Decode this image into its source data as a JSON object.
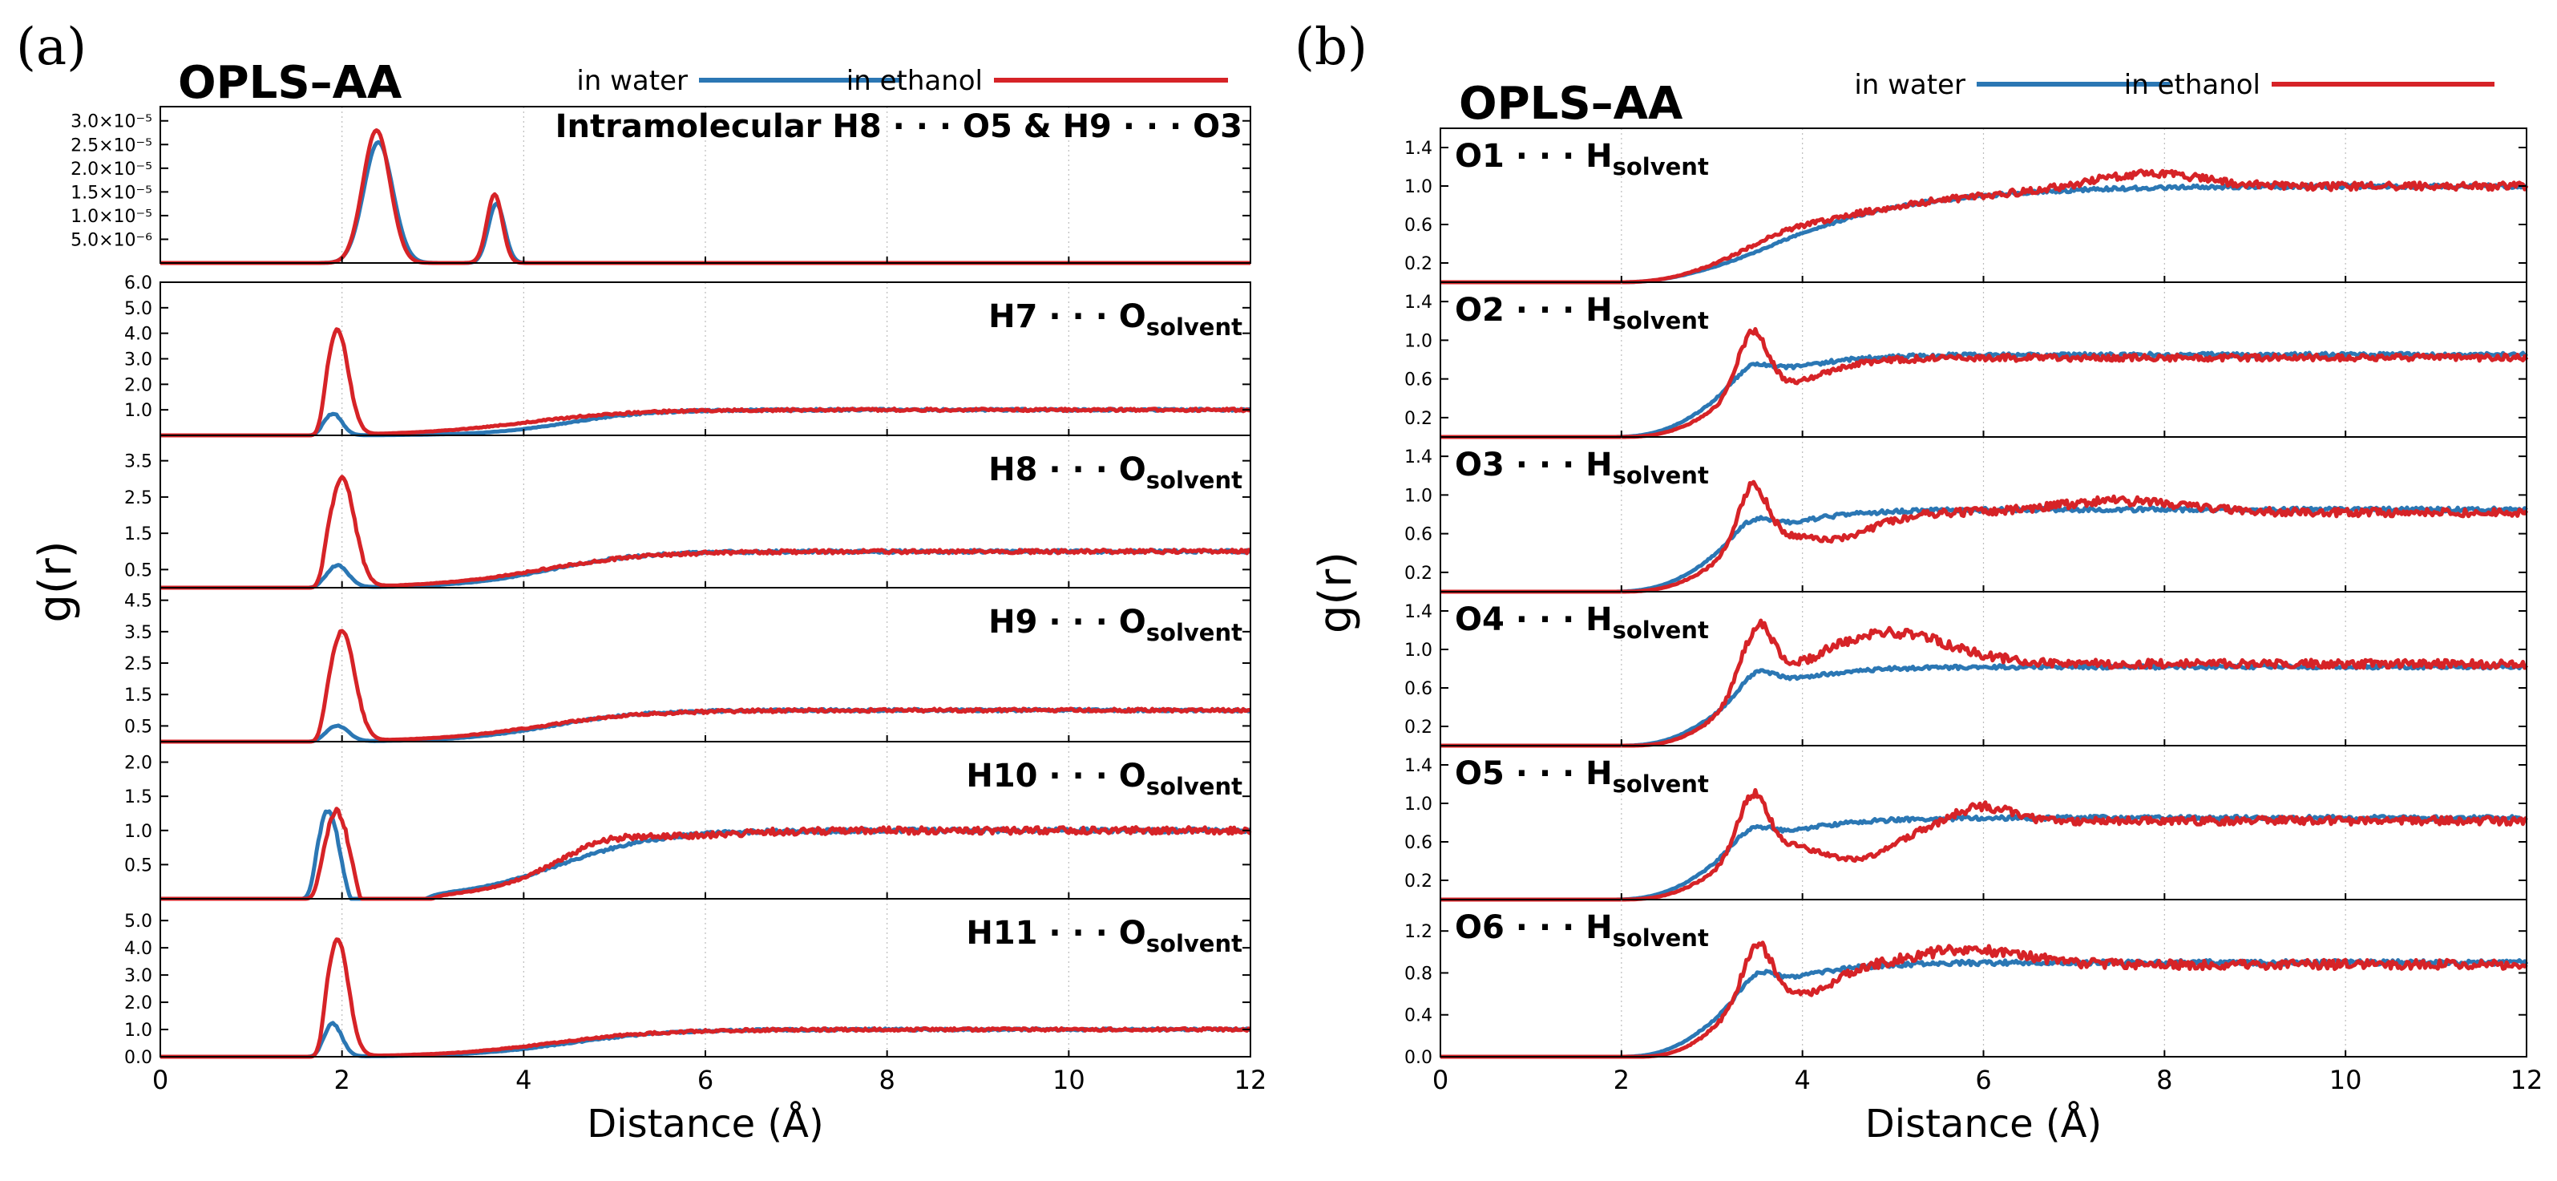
{
  "figure": {
    "colors": {
      "water": "#2b77b4",
      "ethanol": "#d62327"
    },
    "xlabel": "Distance (Å)",
    "ylabel": "g(r)",
    "xticks": [
      "0",
      "2",
      "4",
      "6",
      "8",
      "10",
      "12"
    ]
  },
  "chart_data": [
    {
      "panel_letter": "(a)",
      "model": "OPLS–AA",
      "legend": [
        "in water",
        "in ethanol"
      ],
      "type": "line",
      "xlim": [
        0,
        12
      ],
      "subplots": [
        {
          "label_main": "Intramolecular H8 · · · O5 &  H9 · · · O3",
          "label_sub": "",
          "label_pos": "right",
          "ylim": [
            0,
            3.3e-05
          ],
          "yticks": [
            5e-06,
            1e-05,
            1.5e-05,
            2e-05,
            2.5e-05,
            3e-05
          ],
          "ytick_labels": [
            "5.0×10⁻⁶",
            "1.0×10⁻⁵",
            "1.5×10⁻⁵",
            "2.0×10⁻⁵",
            "2.5×10⁻⁵",
            "3.0×10⁻⁵"
          ],
          "water": {
            "baseline": 0,
            "asym": null,
            "onset": null,
            "peaks": [
              [
                2.4,
                2.55e-05,
                0.16
              ],
              [
                3.7,
                1.25e-05,
                0.09
              ]
            ],
            "wells": [],
            "noise": 0
          },
          "ethanol": {
            "baseline": 0,
            "asym": null,
            "onset": null,
            "peaks": [
              [
                2.38,
                2.8e-05,
                0.15
              ],
              [
                3.68,
                1.45e-05,
                0.085
              ]
            ],
            "wells": [],
            "noise": 0
          }
        },
        {
          "label_main": "H7 · · · O",
          "label_sub": "solvent",
          "label_pos": "right",
          "ylim": [
            0,
            6.0
          ],
          "yticks": [
            1.0,
            2.0,
            3.0,
            4.0,
            5.0,
            6.0
          ],
          "ytick_labels": [
            "1.0",
            "2.0",
            "3.0",
            "4.0",
            "5.0",
            "6.0"
          ],
          "water": {
            "baseline": 0,
            "asym": [
              1.0,
              4.5,
              0.45
            ],
            "onset": [
              1.6,
              1.8
            ],
            "peaks": [
              [
                1.9,
                0.85,
                0.1
              ]
            ],
            "wells": [],
            "noise": 0.04
          },
          "ethanol": {
            "baseline": 0,
            "asym": [
              1.0,
              4.0,
              0.6
            ],
            "onset": [
              1.65,
              1.85
            ],
            "peaks": [
              [
                1.95,
                4.1,
                0.12
              ]
            ],
            "wells": [],
            "noise": 0.05
          }
        },
        {
          "label_main": "H8 · · · O",
          "label_sub": "solvent",
          "label_pos": "right",
          "ylim": [
            0,
            4.2
          ],
          "yticks": [
            0.5,
            1.5,
            2.5,
            3.5
          ],
          "ytick_labels": [
            "0.5",
            "1.5",
            "2.5",
            "3.5"
          ],
          "water": {
            "baseline": 0,
            "asym": [
              1.0,
              4.3,
              0.5
            ],
            "onset": [
              1.6,
              1.8
            ],
            "peaks": [
              [
                1.95,
                0.6,
                0.12
              ]
            ],
            "wells": [],
            "noise": 0.04
          },
          "ethanol": {
            "baseline": 0,
            "asym": [
              1.0,
              4.2,
              0.6
            ],
            "onset": [
              1.65,
              1.85
            ],
            "peaks": [
              [
                2.0,
                3.0,
                0.14
              ]
            ],
            "wells": [],
            "noise": 0.05
          }
        },
        {
          "label_main": "H9 · · · O",
          "label_sub": "solvent",
          "label_pos": "right",
          "ylim": [
            0,
            4.9
          ],
          "yticks": [
            0.5,
            1.5,
            2.5,
            3.5,
            4.5
          ],
          "ytick_labels": [
            "0.5",
            "1.5",
            "2.5",
            "3.5",
            "4.5"
          ],
          "water": {
            "baseline": 0,
            "asym": [
              1.0,
              4.3,
              0.5
            ],
            "onset": [
              1.6,
              1.8
            ],
            "peaks": [
              [
                1.95,
                0.5,
                0.12
              ]
            ],
            "wells": [],
            "noise": 0.04
          },
          "ethanol": {
            "baseline": 0,
            "asym": [
              1.0,
              4.2,
              0.6
            ],
            "onset": [
              1.65,
              1.85
            ],
            "peaks": [
              [
                2.0,
                3.5,
                0.14
              ]
            ],
            "wells": [],
            "noise": 0.05
          }
        },
        {
          "label_main": "H10 · · · O",
          "label_sub": "solvent",
          "label_pos": "right",
          "ylim": [
            0,
            2.3
          ],
          "yticks": [
            0.5,
            1.0,
            1.5,
            2.0
          ],
          "ytick_labels": [
            "0.5",
            "1.0",
            "1.5",
            "2.0"
          ],
          "water": {
            "baseline": 0,
            "asym": [
              1.0,
              4.4,
              0.55
            ],
            "onset": [
              1.55,
              1.75
            ],
            "peaks": [
              [
                1.85,
                1.3,
                0.12
              ]
            ],
            "wells": [
              [
                2.45,
                -0.65,
                0.22
              ]
            ],
            "noise": 0.03
          },
          "ethanol": {
            "baseline": 0,
            "asym": [
              1.0,
              4.6,
              0.55
            ],
            "onset": [
              1.6,
              1.8
            ],
            "peaks": [
              [
                1.95,
                1.3,
                0.14
              ],
              [
                4.8,
                0.22,
                0.5
              ]
            ],
            "wells": [
              [
                2.5,
                -0.65,
                0.22
              ]
            ],
            "noise": 0.05
          }
        },
        {
          "label_main": "H11 · · · O",
          "label_sub": "solvent",
          "label_pos": "right",
          "ylim": [
            0,
            5.8
          ],
          "yticks": [
            0.0,
            1.0,
            2.0,
            3.0,
            4.0,
            5.0
          ],
          "ytick_labels": [
            "0.0",
            "1.0",
            "2.0",
            "3.0",
            "4.0",
            "5.0"
          ],
          "water": {
            "baseline": 0,
            "asym": [
              1.0,
              4.5,
              0.55
            ],
            "onset": [
              1.6,
              1.8
            ],
            "peaks": [
              [
                1.9,
                1.2,
                0.1
              ]
            ],
            "wells": [],
            "noise": 0.04
          },
          "ethanol": {
            "baseline": 0,
            "asym": [
              1.0,
              4.3,
              0.6
            ],
            "onset": [
              1.65,
              1.85
            ],
            "peaks": [
              [
                1.95,
                4.3,
                0.12
              ]
            ],
            "wells": [],
            "noise": 0.05
          }
        }
      ]
    },
    {
      "panel_letter": "(b)",
      "model": "OPLS–AA",
      "legend": [
        "in water",
        "in ethanol"
      ],
      "type": "line",
      "xlim": [
        0,
        12
      ],
      "subplots": [
        {
          "label_main": "O1 · · · H",
          "label_sub": "solvent",
          "label_pos": "left",
          "ylim": [
            0,
            1.6
          ],
          "yticks": [
            0.2,
            0.6,
            1.0,
            1.4
          ],
          "ytick_labels": [
            "0.2",
            "0.6",
            "1.0",
            "1.4"
          ],
          "water": {
            "baseline": 0,
            "asym": [
              1.0,
              3.6,
              1.1
            ],
            "onset": [
              2.0,
              4.0
            ],
            "peaks": [],
            "wells": [
              [
                3.6,
                -0.1,
                0.6
              ]
            ],
            "noise": 0.02
          },
          "ethanol": {
            "baseline": 0,
            "asym": [
              1.0,
              3.6,
              1.1
            ],
            "onset": [
              2.0,
              4.0
            ],
            "peaks": [
              [
                7.8,
                0.15,
                0.6
              ]
            ],
            "wells": [],
            "noise": 0.04
          }
        },
        {
          "label_main": "O2 · · · H",
          "label_sub": "solvent",
          "label_pos": "left",
          "ylim": [
            0,
            1.6
          ],
          "yticks": [
            0.2,
            0.6,
            1.0,
            1.4
          ],
          "ytick_labels": [
            "0.2",
            "0.6",
            "1.0",
            "1.4"
          ],
          "water": {
            "baseline": 0,
            "asym": [
              0.85,
              3.0,
              0.55
            ],
            "onset": [
              1.9,
              3.4
            ],
            "peaks": [
              [
                3.45,
                0.15,
                0.2
              ]
            ],
            "wells": [],
            "noise": 0.025
          },
          "ethanol": {
            "baseline": 0,
            "asym": [
              0.82,
              3.2,
              0.5
            ],
            "onset": [
              2.0,
              3.35
            ],
            "peaks": [
              [
                3.45,
                0.6,
                0.16
              ]
            ],
            "wells": [
              [
                4.0,
                -0.1,
                0.3
              ]
            ],
            "noise": 0.04
          }
        },
        {
          "label_main": "O3 · · · H",
          "label_sub": "solvent",
          "label_pos": "left",
          "ylim": [
            0,
            1.6
          ],
          "yticks": [
            0.2,
            0.6,
            1.0,
            1.4
          ],
          "ytick_labels": [
            "0.2",
            "0.6",
            "1.0",
            "1.4"
          ],
          "water": {
            "baseline": 0,
            "asym": [
              0.85,
              3.0,
              0.55
            ],
            "onset": [
              1.9,
              3.4
            ],
            "peaks": [
              [
                3.45,
                0.15,
                0.2
              ]
            ],
            "wells": [],
            "noise": 0.025
          },
          "ethanol": {
            "baseline": 0,
            "asym": [
              0.82,
              3.2,
              0.5
            ],
            "onset": [
              2.0,
              3.35
            ],
            "peaks": [
              [
                3.45,
                0.6,
                0.16
              ],
              [
                7.5,
                0.12,
                0.7
              ]
            ],
            "wells": [
              [
                4.4,
                -0.2,
                0.4
              ]
            ],
            "noise": 0.05
          }
        },
        {
          "label_main": "O4 · · · H",
          "label_sub": "solvent",
          "label_pos": "left",
          "ylim": [
            0,
            1.6
          ],
          "yticks": [
            0.2,
            0.6,
            1.0,
            1.4
          ],
          "ytick_labels": [
            "0.2",
            "0.6",
            "1.0",
            "1.4"
          ],
          "water": {
            "baseline": 0,
            "asym": [
              0.82,
              3.0,
              0.55
            ],
            "onset": [
              2.0,
              3.5
            ],
            "peaks": [
              [
                3.5,
                0.18,
                0.18
              ]
            ],
            "wells": [],
            "noise": 0.025
          },
          "ethanol": {
            "baseline": 0,
            "asym": [
              0.85,
              3.2,
              0.5
            ],
            "onset": [
              2.1,
              3.4
            ],
            "peaks": [
              [
                3.5,
                0.65,
                0.18
              ],
              [
                4.9,
                0.35,
                0.7
              ]
            ],
            "wells": [],
            "noise": 0.05
          }
        },
        {
          "label_main": "O5 · · · H",
          "label_sub": "solvent",
          "label_pos": "left",
          "ylim": [
            0,
            1.6
          ],
          "yticks": [
            0.2,
            0.6,
            1.0,
            1.4
          ],
          "ytick_labels": [
            "0.2",
            "0.6",
            "1.0",
            "1.4"
          ],
          "water": {
            "baseline": 0,
            "asym": [
              0.85,
              3.0,
              0.55
            ],
            "onset": [
              1.9,
              3.4
            ],
            "peaks": [
              [
                3.45,
                0.15,
                0.2
              ]
            ],
            "wells": [],
            "noise": 0.025
          },
          "ethanol": {
            "baseline": 0,
            "asym": [
              0.82,
              3.2,
              0.5
            ],
            "onset": [
              2.0,
              3.35
            ],
            "peaks": [
              [
                3.45,
                0.6,
                0.16
              ],
              [
                6.0,
                0.15,
                0.3
              ]
            ],
            "wells": [
              [
                4.6,
                -0.35,
                0.45
              ]
            ],
            "noise": 0.05
          }
        },
        {
          "label_main": "O6 · · · H",
          "label_sub": "solvent",
          "label_pos": "left",
          "ylim": [
            0,
            1.5
          ],
          "yticks": [
            0.0,
            0.4,
            0.8,
            1.2
          ],
          "ytick_labels": [
            "0.0",
            "0.4",
            "0.8",
            "1.2"
          ],
          "water": {
            "baseline": 0,
            "asym": [
              0.9,
              3.0,
              0.55
            ],
            "onset": [
              2.0,
              3.5
            ],
            "peaks": [
              [
                3.5,
                0.15,
                0.18
              ]
            ],
            "wells": [],
            "noise": 0.025
          },
          "ethanol": {
            "baseline": 0,
            "asym": [
              0.88,
              3.2,
              0.5
            ],
            "onset": [
              2.2,
              3.4
            ],
            "peaks": [
              [
                3.5,
                0.5,
                0.16
              ],
              [
                5.8,
                0.15,
                0.6
              ]
            ],
            "wells": [
              [
                4.1,
                -0.15,
                0.25
              ]
            ],
            "noise": 0.05
          }
        }
      ]
    }
  ]
}
